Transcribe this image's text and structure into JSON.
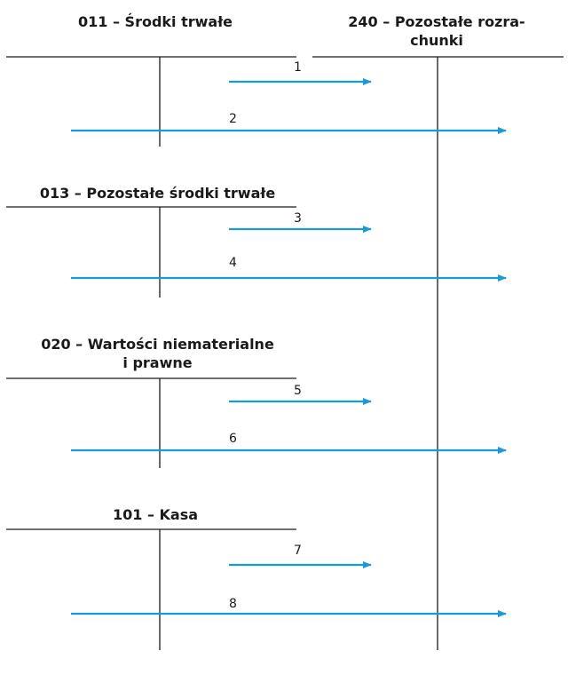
{
  "accounts": {
    "a011": {
      "title": "011 – Środki trwałe"
    },
    "a240": {
      "title_line1": "240 – Pozostałe rozra-",
      "title_line2": "chunki"
    },
    "a013": {
      "title": "013 – Pozostałe środki trwałe"
    },
    "a020": {
      "title_line1": "020 – Wartości niematerialne",
      "title_line2": "i prawne"
    },
    "a101": {
      "title": "101 – Kasa"
    }
  },
  "arrows": [
    {
      "label": "1",
      "from": "011",
      "to": "240",
      "side": "Ct/Dt"
    },
    {
      "label": "2",
      "from": "011",
      "to": "240",
      "side": "Dt/Ct"
    },
    {
      "label": "3",
      "from": "013",
      "to": "240",
      "side": "Ct/Dt"
    },
    {
      "label": "4",
      "from": "013",
      "to": "240",
      "side": "Dt/Ct"
    },
    {
      "label": "5",
      "from": "020",
      "to": "240",
      "side": "Ct/Dt"
    },
    {
      "label": "6",
      "from": "020",
      "to": "240",
      "side": "Dt/Ct"
    },
    {
      "label": "7",
      "from": "101",
      "to": "240",
      "side": "Ct/Dt"
    },
    {
      "label": "8",
      "from": "101",
      "to": "240",
      "side": "Dt/Ct"
    }
  ],
  "colors": {
    "arrow": "#1a9ad6",
    "line": "#1a1a1a"
  }
}
